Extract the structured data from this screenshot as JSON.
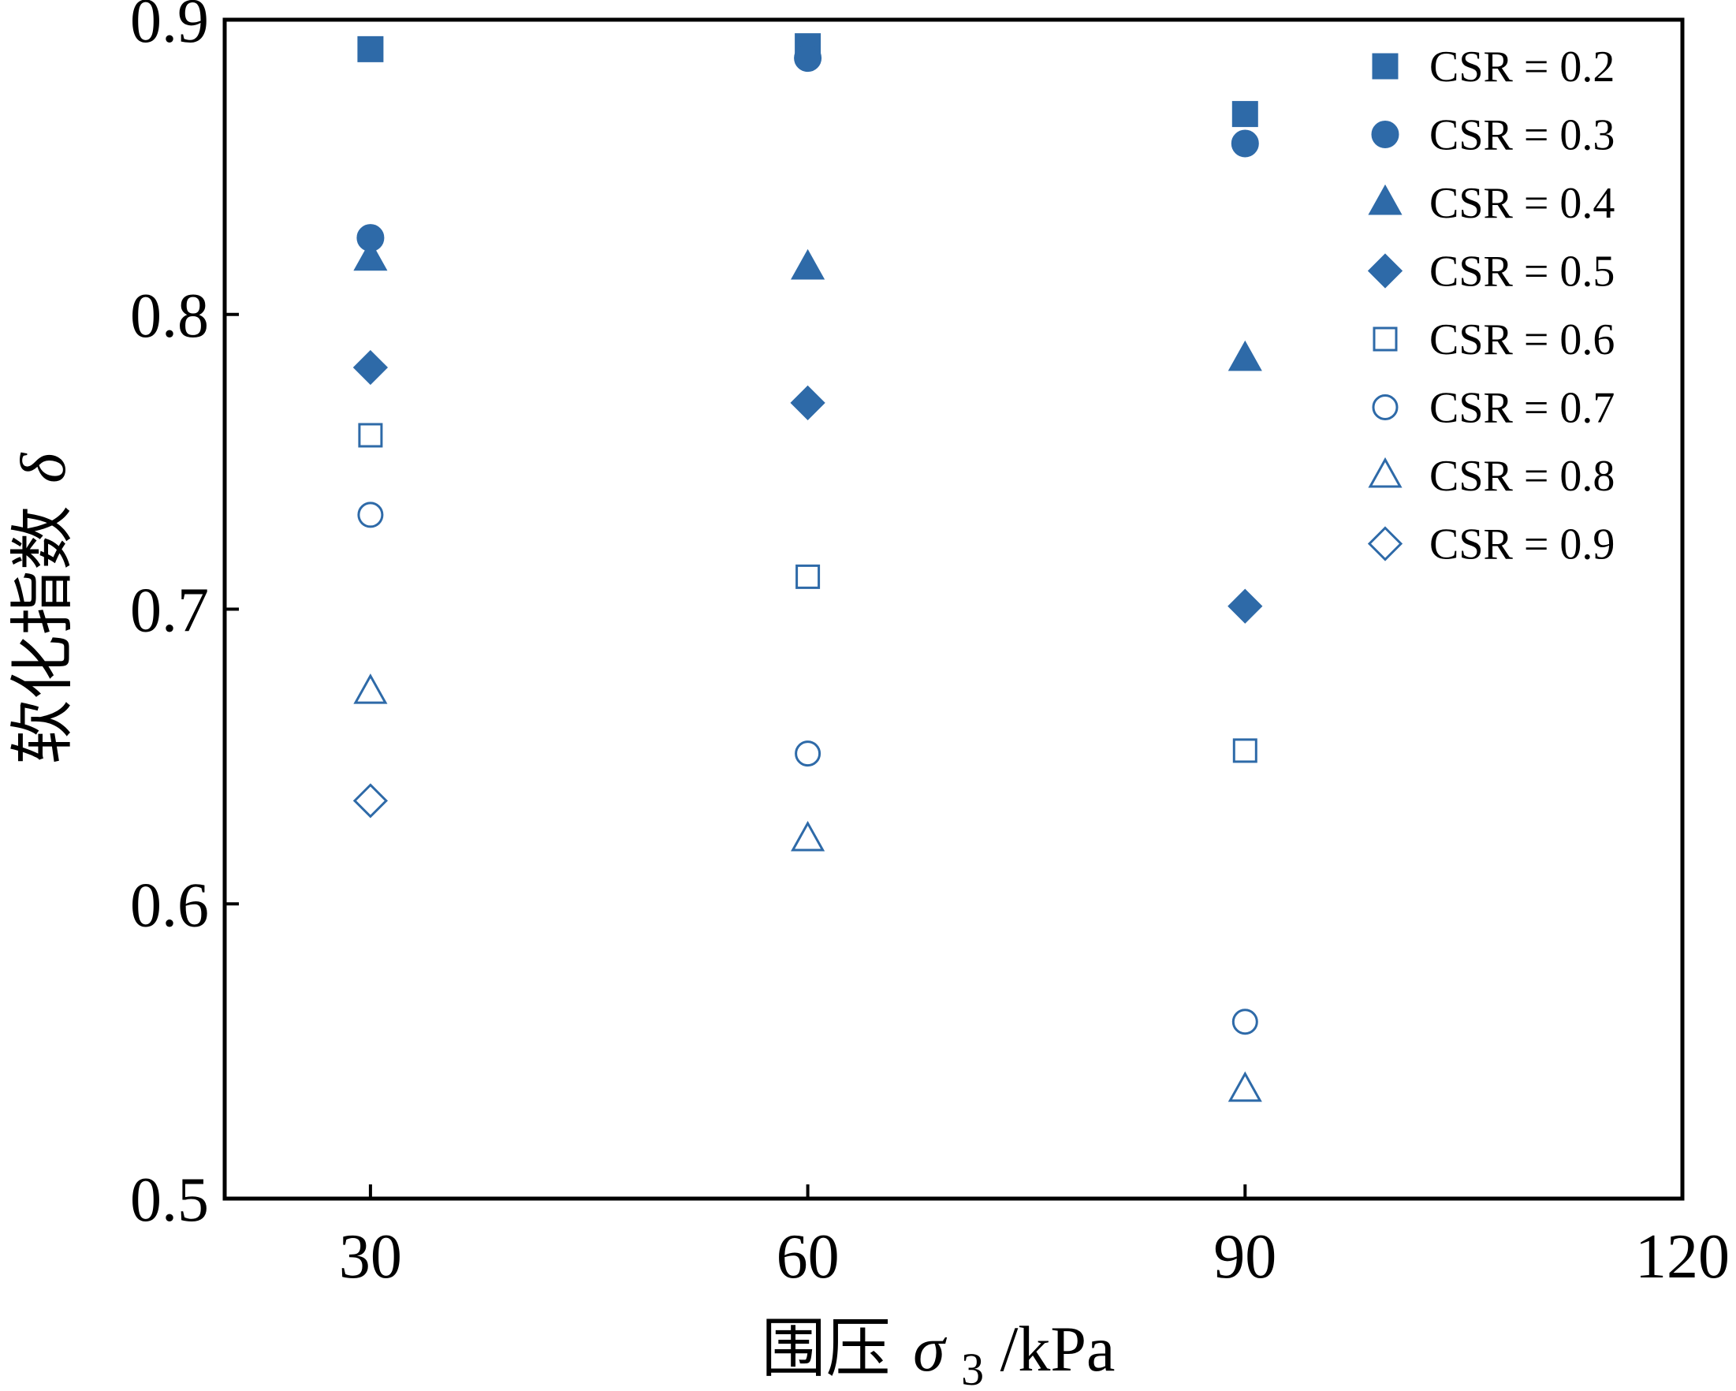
{
  "chart_data": {
    "type": "scatter",
    "title": "",
    "xlabel": {
      "prefix": "围压",
      "symbol": "σ",
      "subscript": "3",
      "unit": "/kPa"
    },
    "ylabel": {
      "text": "软化指数",
      "symbol": "δ"
    },
    "xlim": [
      20,
      120
    ],
    "ylim": [
      0.5,
      0.9
    ],
    "xticks": [
      30,
      60,
      90,
      120
    ],
    "xtick_labels": [
      "30",
      "60",
      "90",
      "120"
    ],
    "yticks": [
      0.5,
      0.6,
      0.7,
      0.8,
      0.9
    ],
    "ytick_labels": [
      "0.5",
      "0.6",
      "0.7",
      "0.8",
      "0.9"
    ],
    "grid": false,
    "legend_position": "top-right",
    "color": "#2e6aa8",
    "series": [
      {
        "name": "CSR = 0.2",
        "marker": "square",
        "filled": true,
        "x": [
          30,
          60,
          90
        ],
        "y": [
          0.89,
          0.891,
          0.868
        ]
      },
      {
        "name": "CSR = 0.3",
        "marker": "circle",
        "filled": true,
        "x": [
          30,
          60,
          90
        ],
        "y": [
          0.826,
          0.887,
          0.858
        ]
      },
      {
        "name": "CSR = 0.4",
        "marker": "triangle",
        "filled": true,
        "x": [
          30,
          60,
          90
        ],
        "y": [
          0.819,
          0.816,
          0.785
        ]
      },
      {
        "name": "CSR = 0.5",
        "marker": "diamond",
        "filled": true,
        "x": [
          30,
          60,
          90
        ],
        "y": [
          0.782,
          0.77,
          0.701
        ]
      },
      {
        "name": "CSR = 0.6",
        "marker": "square",
        "filled": false,
        "x": [
          30,
          60,
          90
        ],
        "y": [
          0.759,
          0.711,
          0.652
        ]
      },
      {
        "name": "CSR = 0.7",
        "marker": "circle",
        "filled": false,
        "x": [
          30,
          60,
          90
        ],
        "y": [
          0.732,
          0.651,
          0.56
        ]
      },
      {
        "name": "CSR = 0.8",
        "marker": "triangle",
        "filled": false,
        "x": [
          30,
          60,
          90
        ],
        "y": [
          0.672,
          0.622,
          0.537
        ]
      },
      {
        "name": "CSR = 0.9",
        "marker": "diamond",
        "filled": false,
        "x": [
          30
        ],
        "y": [
          0.635
        ]
      }
    ]
  }
}
